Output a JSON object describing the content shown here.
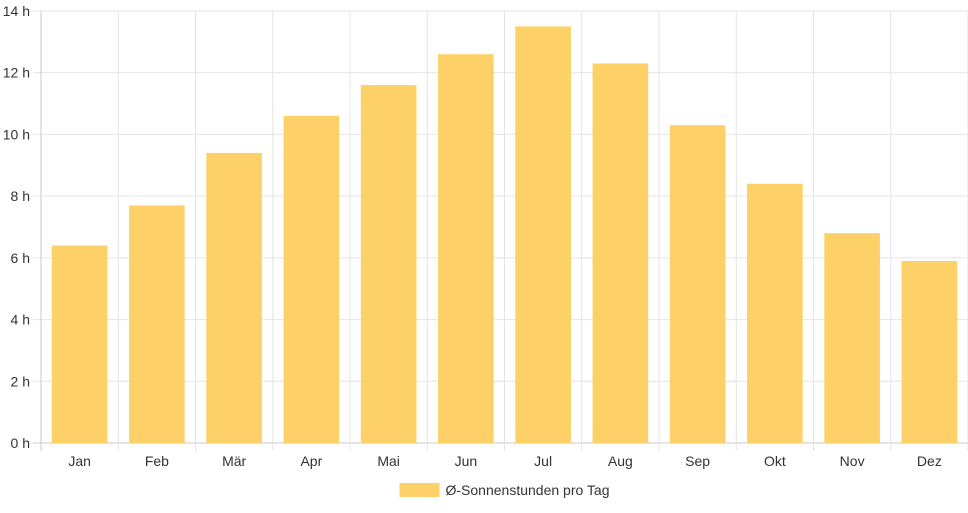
{
  "chart_data": {
    "type": "bar",
    "categories": [
      "Jan",
      "Feb",
      "Mär",
      "Apr",
      "Mai",
      "Jun",
      "Jul",
      "Aug",
      "Sep",
      "Okt",
      "Nov",
      "Dez"
    ],
    "series": [
      {
        "name": "Ø-Sonnenstunden pro Tag",
        "values": [
          6.4,
          7.7,
          9.4,
          10.6,
          11.6,
          12.6,
          13.5,
          12.3,
          10.3,
          8.4,
          6.8,
          5.9
        ]
      }
    ],
    "y_ticks": [
      "0 h",
      "2 h",
      "4 h",
      "6 h",
      "8 h",
      "10 h",
      "12 h",
      "14 h"
    ],
    "ylim": [
      0,
      14
    ],
    "grid": true,
    "legend_position": "bottom",
    "bar_color": "#fdd068"
  }
}
